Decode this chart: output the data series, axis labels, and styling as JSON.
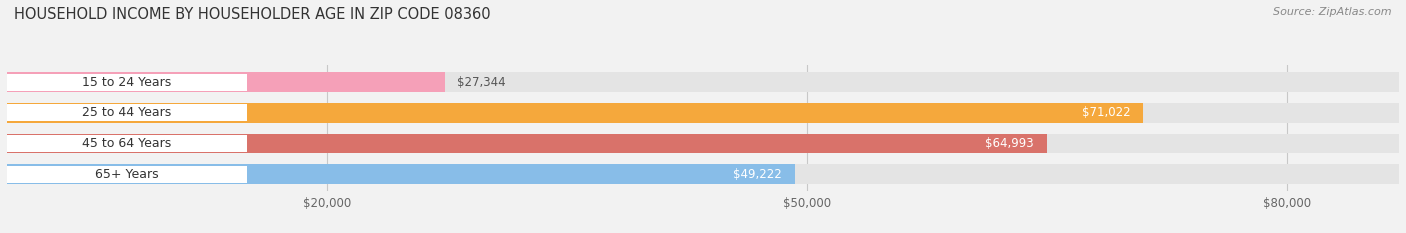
{
  "title": "HOUSEHOLD INCOME BY HOUSEHOLDER AGE IN ZIP CODE 08360",
  "source": "Source: ZipAtlas.com",
  "categories": [
    "15 to 24 Years",
    "25 to 44 Years",
    "45 to 64 Years",
    "65+ Years"
  ],
  "values": [
    27344,
    71022,
    64993,
    49222
  ],
  "bar_colors": [
    "#f5a0b8",
    "#f5a83c",
    "#d9726a",
    "#88bde8"
  ],
  "value_labels": [
    "$27,344",
    "$71,022",
    "$64,993",
    "$49,222"
  ],
  "value_label_inside": [
    false,
    true,
    true,
    true
  ],
  "xlim": [
    0,
    87000
  ],
  "xticks": [
    20000,
    50000,
    80000
  ],
  "xtick_labels": [
    "$20,000",
    "$50,000",
    "$80,000"
  ],
  "bg_color": "#f2f2f2",
  "bar_bg_color": "#e4e4e4",
  "label_bg_color": "#ffffff",
  "title_fontsize": 10.5,
  "source_fontsize": 8,
  "label_fontsize": 9,
  "value_fontsize": 8.5,
  "tick_fontsize": 8.5,
  "bar_height": 0.65
}
